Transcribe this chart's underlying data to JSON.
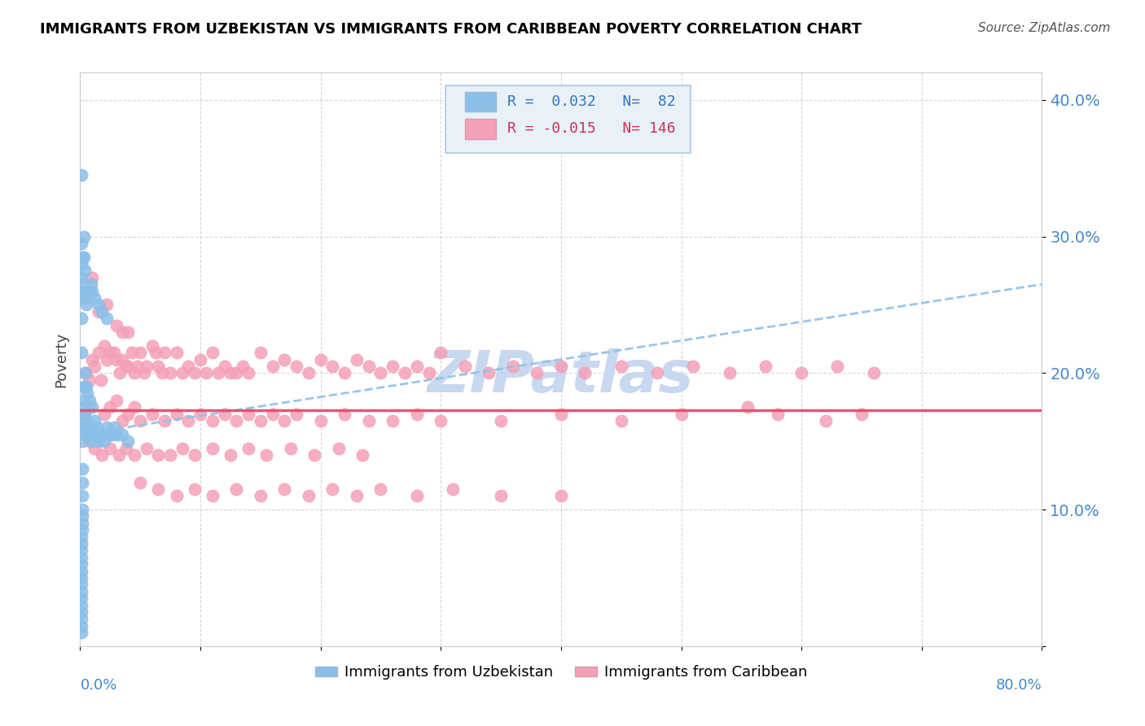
{
  "title": "IMMIGRANTS FROM UZBEKISTAN VS IMMIGRANTS FROM CARIBBEAN POVERTY CORRELATION CHART",
  "source": "Source: ZipAtlas.com",
  "ylabel": "Poverty",
  "yticks": [
    0.0,
    0.1,
    0.2,
    0.3,
    0.4
  ],
  "ytick_labels": [
    "",
    "10.0%",
    "20.0%",
    "30.0%",
    "40.0%"
  ],
  "xrange": [
    0.0,
    0.8
  ],
  "yrange": [
    0.0,
    0.42
  ],
  "color_uzbekistan": "#8bbfe8",
  "color_caribbean": "#f4a0b8",
  "trendline_uzbekistan_color": "#90c0e8",
  "trendline_caribbean_color": "#e05070",
  "watermark_color": "#c8d8f0",
  "legend_box_color": "#e8f0f8",
  "legend_border_color": "#b0c8e0",
  "uzbekistan_x": [
    0.001,
    0.001,
    0.001,
    0.001,
    0.001,
    0.001,
    0.001,
    0.001,
    0.001,
    0.001,
    0.001,
    0.001,
    0.001,
    0.001,
    0.002,
    0.002,
    0.002,
    0.002,
    0.002,
    0.002,
    0.002,
    0.002,
    0.003,
    0.003,
    0.003,
    0.003,
    0.003,
    0.004,
    0.004,
    0.004,
    0.005,
    0.005,
    0.005,
    0.006,
    0.006,
    0.007,
    0.007,
    0.008,
    0.008,
    0.009,
    0.01,
    0.01,
    0.011,
    0.012,
    0.013,
    0.014,
    0.015,
    0.016,
    0.017,
    0.018,
    0.02,
    0.022,
    0.024,
    0.026,
    0.028,
    0.03,
    0.035,
    0.04,
    0.001,
    0.001,
    0.001,
    0.001,
    0.001,
    0.002,
    0.002,
    0.002,
    0.003,
    0.003,
    0.004,
    0.004,
    0.005,
    0.006,
    0.007,
    0.008,
    0.009,
    0.01,
    0.012,
    0.015,
    0.018,
    0.022,
    0.001,
    0.001
  ],
  "uzbekistan_y": [
    0.015,
    0.02,
    0.025,
    0.03,
    0.035,
    0.04,
    0.045,
    0.05,
    0.055,
    0.06,
    0.065,
    0.07,
    0.075,
    0.08,
    0.085,
    0.09,
    0.095,
    0.1,
    0.11,
    0.12,
    0.13,
    0.15,
    0.16,
    0.17,
    0.175,
    0.18,
    0.19,
    0.16,
    0.17,
    0.2,
    0.155,
    0.165,
    0.19,
    0.16,
    0.185,
    0.155,
    0.175,
    0.155,
    0.18,
    0.16,
    0.15,
    0.175,
    0.155,
    0.165,
    0.155,
    0.16,
    0.15,
    0.155,
    0.155,
    0.155,
    0.15,
    0.16,
    0.155,
    0.155,
    0.16,
    0.155,
    0.155,
    0.15,
    0.215,
    0.24,
    0.27,
    0.28,
    0.295,
    0.255,
    0.265,
    0.285,
    0.285,
    0.3,
    0.26,
    0.275,
    0.25,
    0.255,
    0.26,
    0.26,
    0.265,
    0.26,
    0.255,
    0.25,
    0.245,
    0.24,
    0.345,
    0.01
  ],
  "caribbean_x": [
    0.005,
    0.008,
    0.01,
    0.012,
    0.015,
    0.017,
    0.02,
    0.022,
    0.025,
    0.028,
    0.03,
    0.033,
    0.035,
    0.038,
    0.04,
    0.043,
    0.045,
    0.048,
    0.05,
    0.053,
    0.055,
    0.06,
    0.063,
    0.065,
    0.068,
    0.07,
    0.075,
    0.08,
    0.085,
    0.09,
    0.095,
    0.1,
    0.105,
    0.11,
    0.115,
    0.12,
    0.125,
    0.13,
    0.135,
    0.14,
    0.15,
    0.16,
    0.17,
    0.18,
    0.19,
    0.2,
    0.21,
    0.22,
    0.23,
    0.24,
    0.25,
    0.26,
    0.27,
    0.28,
    0.29,
    0.3,
    0.32,
    0.34,
    0.36,
    0.38,
    0.4,
    0.42,
    0.45,
    0.48,
    0.51,
    0.54,
    0.57,
    0.6,
    0.63,
    0.66,
    0.02,
    0.025,
    0.03,
    0.035,
    0.04,
    0.045,
    0.05,
    0.06,
    0.07,
    0.08,
    0.09,
    0.1,
    0.11,
    0.12,
    0.13,
    0.14,
    0.15,
    0.16,
    0.17,
    0.18,
    0.2,
    0.22,
    0.24,
    0.26,
    0.28,
    0.3,
    0.35,
    0.4,
    0.45,
    0.5,
    0.008,
    0.012,
    0.018,
    0.025,
    0.032,
    0.038,
    0.045,
    0.055,
    0.065,
    0.075,
    0.085,
    0.095,
    0.11,
    0.125,
    0.14,
    0.155,
    0.175,
    0.195,
    0.215,
    0.235,
    0.01,
    0.015,
    0.022,
    0.03,
    0.04,
    0.555,
    0.58,
    0.62,
    0.65,
    0.035,
    0.05,
    0.065,
    0.08,
    0.095,
    0.11,
    0.13,
    0.15,
    0.17,
    0.19,
    0.21,
    0.23,
    0.25,
    0.28,
    0.31,
    0.35,
    0.4
  ],
  "caribbean_y": [
    0.2,
    0.195,
    0.21,
    0.205,
    0.215,
    0.195,
    0.22,
    0.21,
    0.215,
    0.215,
    0.21,
    0.2,
    0.21,
    0.205,
    0.205,
    0.215,
    0.2,
    0.205,
    0.215,
    0.2,
    0.205,
    0.22,
    0.215,
    0.205,
    0.2,
    0.215,
    0.2,
    0.215,
    0.2,
    0.205,
    0.2,
    0.21,
    0.2,
    0.215,
    0.2,
    0.205,
    0.2,
    0.2,
    0.205,
    0.2,
    0.215,
    0.205,
    0.21,
    0.205,
    0.2,
    0.21,
    0.205,
    0.2,
    0.21,
    0.205,
    0.2,
    0.205,
    0.2,
    0.205,
    0.2,
    0.215,
    0.205,
    0.2,
    0.205,
    0.2,
    0.205,
    0.2,
    0.205,
    0.2,
    0.205,
    0.2,
    0.205,
    0.2,
    0.205,
    0.2,
    0.17,
    0.175,
    0.18,
    0.165,
    0.17,
    0.175,
    0.165,
    0.17,
    0.165,
    0.17,
    0.165,
    0.17,
    0.165,
    0.17,
    0.165,
    0.17,
    0.165,
    0.17,
    0.165,
    0.17,
    0.165,
    0.17,
    0.165,
    0.165,
    0.17,
    0.165,
    0.165,
    0.17,
    0.165,
    0.17,
    0.15,
    0.145,
    0.14,
    0.145,
    0.14,
    0.145,
    0.14,
    0.145,
    0.14,
    0.14,
    0.145,
    0.14,
    0.145,
    0.14,
    0.145,
    0.14,
    0.145,
    0.14,
    0.145,
    0.14,
    0.27,
    0.245,
    0.25,
    0.235,
    0.23,
    0.175,
    0.17,
    0.165,
    0.17,
    0.23,
    0.12,
    0.115,
    0.11,
    0.115,
    0.11,
    0.115,
    0.11,
    0.115,
    0.11,
    0.115,
    0.11,
    0.115,
    0.11,
    0.115,
    0.11,
    0.11
  ],
  "trendline_uz_x0": 0.0,
  "trendline_uz_y0": 0.155,
  "trendline_uz_x1": 0.8,
  "trendline_uz_y1": 0.265,
  "trendline_car_y": 0.173
}
